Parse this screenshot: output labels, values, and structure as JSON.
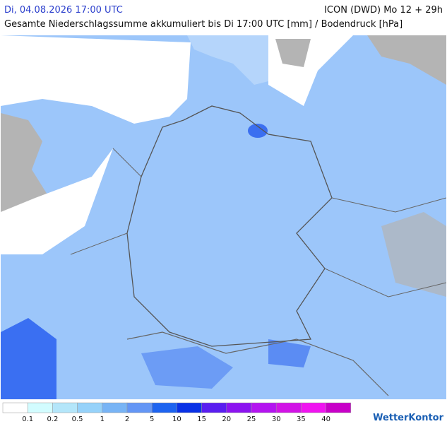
{
  "header": {
    "datetime": "Di, 04.08.2026 17:00 UTC",
    "model": "ICON (DWD) Mo 12 + 29h",
    "subtitle": "Gesamte Niederschlagssumme akkumuliert bis Di 17:00 UTC [mm] / Bodendruck [hPa]"
  },
  "legend": {
    "colors": [
      "#ffffff",
      "#d2fcff",
      "#b4e6fa",
      "#96d2fa",
      "#78b4f5",
      "#6496f5",
      "#1e64f0",
      "#0a32e6",
      "#5a1ef0",
      "#8c14f0",
      "#b414f0",
      "#d214e6",
      "#f014f0",
      "#c800c8"
    ],
    "ticks": [
      0.1,
      0.2,
      0.5,
      1,
      2,
      5,
      10,
      15,
      20,
      25,
      30,
      35,
      40
    ]
  },
  "logo": "WetterKontor"
}
